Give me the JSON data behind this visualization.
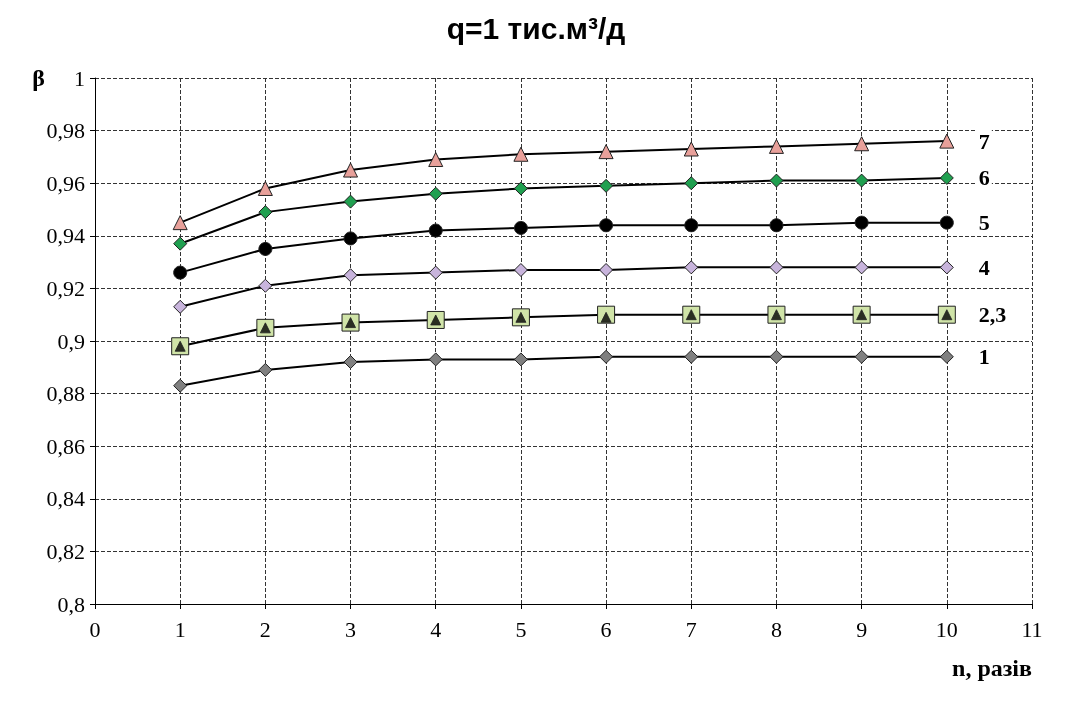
{
  "chart_data": {
    "type": "line",
    "title": "q=1 тис.м³/д",
    "xlabel": "n, разів",
    "ylabel": "β",
    "x": [
      1,
      2,
      3,
      4,
      5,
      6,
      7,
      8,
      9,
      10
    ],
    "xlim": [
      0,
      11
    ],
    "xticks": [
      0,
      1,
      2,
      3,
      4,
      5,
      6,
      7,
      8,
      9,
      10,
      11
    ],
    "ylim": [
      0.8,
      1
    ],
    "yticks": [
      {
        "value": 0.8,
        "label": "0,8"
      },
      {
        "value": 0.82,
        "label": "0,82"
      },
      {
        "value": 0.84,
        "label": "0,84"
      },
      {
        "value": 0.86,
        "label": "0,86"
      },
      {
        "value": 0.88,
        "label": "0,88"
      },
      {
        "value": 0.9,
        "label": "0,9"
      },
      {
        "value": 0.92,
        "label": "0,92"
      },
      {
        "value": 0.94,
        "label": "0,94"
      },
      {
        "value": 0.96,
        "label": "0,96"
      },
      {
        "value": 0.98,
        "label": "0,98"
      },
      {
        "value": 1,
        "label": "1"
      }
    ],
    "grid": true,
    "legend": false,
    "line_style": "solid",
    "series": [
      {
        "name": "7",
        "color": "#e8a09a",
        "marker": "triangle",
        "values": [
          0.945,
          0.958,
          0.965,
          0.969,
          0.971,
          0.972,
          0.973,
          0.974,
          0.975,
          0.976
        ]
      },
      {
        "name": "6",
        "color": "#20a050",
        "marker": "diamond",
        "values": [
          0.937,
          0.949,
          0.953,
          0.956,
          0.958,
          0.959,
          0.96,
          0.961,
          0.961,
          0.962
        ]
      },
      {
        "name": "5",
        "color": "#000000",
        "marker": "circle",
        "values": [
          0.926,
          0.935,
          0.939,
          0.942,
          0.943,
          0.944,
          0.944,
          0.944,
          0.945,
          0.945
        ]
      },
      {
        "name": "4",
        "color": "#c8b4dc",
        "marker": "diamond",
        "values": [
          0.913,
          0.921,
          0.925,
          0.926,
          0.927,
          0.927,
          0.928,
          0.928,
          0.928,
          0.928
        ]
      },
      {
        "name": "2,3",
        "color": "#d0e4a8",
        "marker": "square",
        "values": [
          0.898,
          0.905,
          0.907,
          0.908,
          0.909,
          0.91,
          0.91,
          0.91,
          0.91,
          0.91
        ]
      },
      {
        "type": "scatter",
        "color": "#000000",
        "marker": "triangle",
        "values": [
          0.898,
          0.905,
          0.907,
          0.908,
          0.909,
          0.909,
          0.91,
          0.91,
          0.91,
          0.91
        ]
      },
      {
        "name": "1",
        "color": "#808080",
        "marker": "diamond",
        "values": [
          0.883,
          0.889,
          0.892,
          0.893,
          0.893,
          0.894,
          0.894,
          0.894,
          0.894,
          0.894
        ]
      }
    ]
  }
}
